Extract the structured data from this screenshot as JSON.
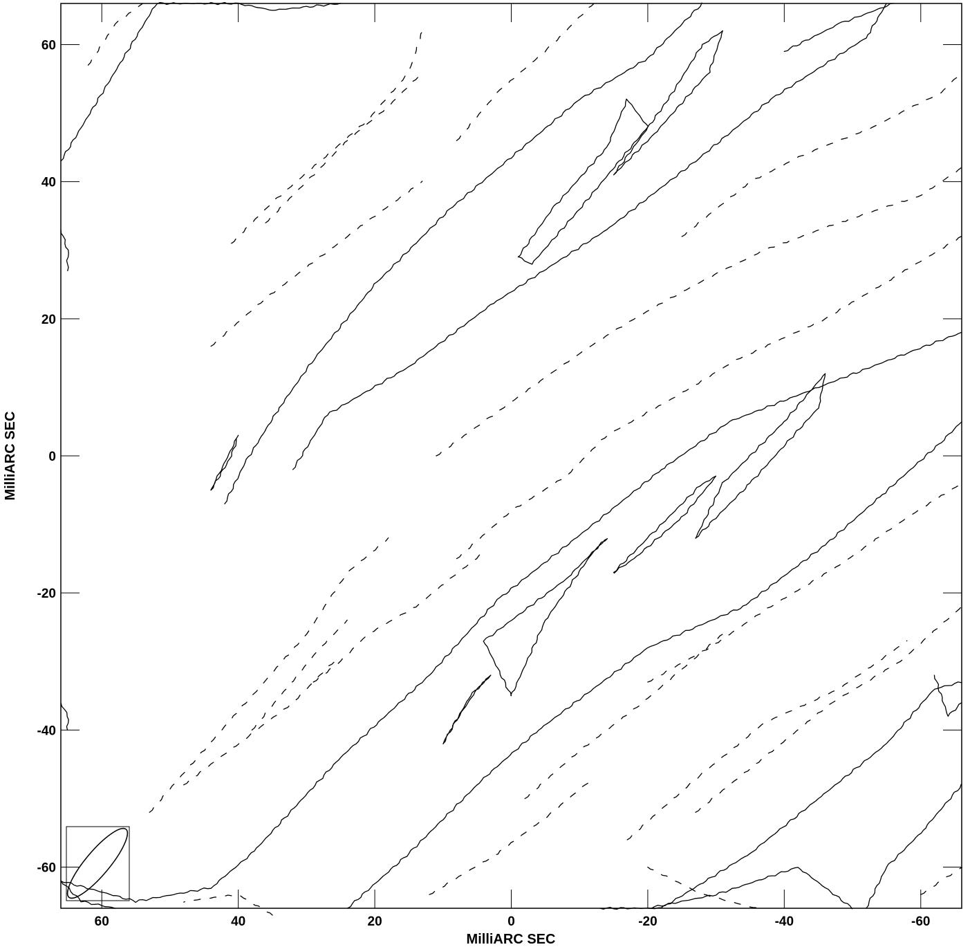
{
  "chart_data": {
    "type": "contour",
    "title": "",
    "xlabel": "MilliARC SEC",
    "ylabel": "MilliARC SEC",
    "xlim": [
      66,
      -66
    ],
    "ylim": [
      -66,
      66
    ],
    "x_ticks": [
      60,
      40,
      20,
      0,
      -20,
      -40,
      -60
    ],
    "y_ticks": [
      60,
      40,
      20,
      0,
      -20,
      -40,
      -60
    ],
    "x_tick_labels": [
      "60",
      "40",
      "20",
      "0",
      "-20",
      "-40",
      "-60"
    ],
    "y_tick_labels": [
      "60",
      "40",
      "20",
      "0",
      "-20",
      "-40",
      "-60"
    ],
    "grid": false,
    "beam": {
      "corner": "bottom-left",
      "major_axis_mas": 13,
      "minor_axis_mas": 3.5,
      "position_angle_deg": 40
    },
    "positive_contours": [
      [
        [
          66,
          -62
        ],
        [
          55,
          -65
        ],
        [
          44,
          -63
        ],
        [
          38,
          -58
        ],
        [
          25,
          -44
        ],
        [
          12,
          -32
        ],
        [
          2,
          -21
        ],
        [
          -12,
          -10
        ],
        [
          -22,
          -2
        ],
        [
          -32,
          5
        ],
        [
          -45,
          10
        ],
        [
          -58,
          15
        ],
        [
          -66,
          18
        ]
      ],
      [
        [
          24,
          -66
        ],
        [
          15,
          -58
        ],
        [
          4,
          -47
        ],
        [
          -4,
          -40
        ],
        [
          -20,
          -28
        ],
        [
          -34,
          -22
        ],
        [
          -46,
          -13
        ],
        [
          -54,
          -6
        ],
        [
          -63,
          2
        ],
        [
          -66,
          5
        ]
      ],
      [
        [
          -13,
          -66
        ],
        [
          -22,
          -66
        ],
        [
          -35,
          -58
        ],
        [
          -45,
          -50
        ],
        [
          -55,
          -42
        ],
        [
          -62,
          -34
        ],
        [
          -66,
          -33
        ]
      ],
      [
        [
          -20,
          -66
        ],
        [
          -30,
          -64
        ],
        [
          -42,
          -60
        ],
        [
          -50,
          -66
        ]
      ],
      [
        [
          -52,
          -66
        ],
        [
          -55,
          -60
        ],
        [
          -60,
          -55
        ],
        [
          -66,
          -48
        ]
      ],
      [
        [
          42,
          -7
        ],
        [
          39,
          -1
        ],
        [
          34,
          7
        ],
        [
          29,
          14
        ],
        [
          20,
          25
        ],
        [
          9,
          36
        ],
        [
          -10,
          52
        ],
        [
          -20,
          58
        ],
        [
          -28,
          66
        ]
      ],
      [
        [
          32,
          -2
        ],
        [
          27,
          6
        ],
        [
          15,
          13
        ],
        [
          3,
          22
        ],
        [
          -14,
          33
        ],
        [
          -27,
          43
        ],
        [
          -38,
          52
        ],
        [
          -52,
          61
        ],
        [
          -55,
          66
        ]
      ],
      [
        [
          -40,
          59
        ],
        [
          -48,
          63
        ],
        [
          -56,
          66
        ]
      ],
      [
        [
          66,
          43
        ],
        [
          52,
          66
        ],
        [
          40,
          66
        ],
        [
          35,
          65
        ],
        [
          25,
          66
        ]
      ],
      [
        [
          -1,
          29
        ],
        [
          -6,
          36
        ],
        [
          -14,
          45
        ],
        [
          -17,
          52
        ],
        [
          -20,
          48
        ],
        [
          -10,
          36
        ],
        [
          -3,
          28
        ],
        [
          -1,
          29
        ]
      ],
      [
        [
          -15,
          41
        ],
        [
          -23,
          52
        ],
        [
          -28,
          60
        ],
        [
          -31,
          62
        ],
        [
          -29,
          56
        ],
        [
          -21,
          47
        ],
        [
          -15,
          41
        ]
      ],
      [
        [
          -27,
          -12
        ],
        [
          -35,
          -4
        ],
        [
          -45,
          7
        ],
        [
          -46,
          12
        ],
        [
          -40,
          5
        ],
        [
          -31,
          -4
        ],
        [
          -27,
          -12
        ]
      ],
      [
        [
          -15,
          -17
        ],
        [
          -20,
          -12
        ],
        [
          -28,
          -4
        ],
        [
          -30,
          -3
        ],
        [
          -25,
          -9
        ],
        [
          -18,
          -15
        ],
        [
          -15,
          -17
        ]
      ],
      [
        [
          0,
          -35
        ],
        [
          4,
          -27
        ],
        [
          -8,
          -18
        ],
        [
          -14,
          -12
        ],
        [
          -12,
          -14
        ],
        [
          -5,
          -24
        ],
        [
          0,
          -35
        ]
      ],
      [
        [
          10,
          -42
        ],
        [
          6,
          -35
        ],
        [
          3,
          -32
        ],
        [
          5,
          -34
        ],
        [
          9,
          -40
        ],
        [
          10,
          -42
        ]
      ],
      [
        [
          44,
          -5
        ],
        [
          41,
          0
        ],
        [
          40,
          3
        ],
        [
          43,
          -3
        ],
        [
          44,
          -5
        ]
      ],
      [
        [
          66,
          -62
        ],
        [
          63,
          -65
        ],
        [
          58,
          -66
        ]
      ],
      [
        [
          -62,
          -32
        ],
        [
          -64,
          -38
        ],
        [
          -66,
          -36
        ]
      ],
      [
        [
          66,
          33
        ],
        [
          65,
          30
        ],
        [
          65,
          27
        ]
      ],
      [
        [
          66,
          -36
        ],
        [
          65,
          -38
        ],
        [
          65,
          -40
        ]
      ]
    ],
    "negative_contours": [
      [
        [
          53,
          -52
        ],
        [
          46,
          -44
        ],
        [
          38,
          -35
        ],
        [
          30,
          -26
        ],
        [
          24,
          -17
        ],
        [
          18,
          -12
        ]
      ],
      [
        [
          48,
          -48
        ],
        [
          40,
          -42
        ],
        [
          32,
          -36
        ],
        [
          26,
          -30
        ]
      ],
      [
        [
          38,
          -40
        ],
        [
          33,
          -34
        ],
        [
          28,
          -28
        ],
        [
          24,
          -24
        ]
      ],
      [
        [
          29,
          -33
        ],
        [
          25,
          -30
        ],
        [
          21,
          -26
        ],
        [
          14,
          -22
        ],
        [
          9,
          -18
        ],
        [
          4,
          -14
        ]
      ],
      [
        [
          8,
          -15
        ],
        [
          0,
          -8
        ],
        [
          -8,
          -3
        ],
        [
          -14,
          3
        ],
        [
          -23,
          8
        ],
        [
          -33,
          14
        ],
        [
          -46,
          20
        ],
        [
          -56,
          26
        ],
        [
          -66,
          32
        ]
      ],
      [
        [
          11,
          0
        ],
        [
          4,
          5
        ],
        [
          -3,
          10
        ],
        [
          -10,
          15
        ],
        [
          -18,
          20
        ],
        [
          -27,
          25
        ],
        [
          -37,
          30
        ],
        [
          -48,
          34
        ],
        [
          -60,
          38
        ],
        [
          -66,
          42
        ]
      ],
      [
        [
          44,
          16
        ],
        [
          36,
          23
        ],
        [
          28,
          29
        ],
        [
          20,
          35
        ],
        [
          13,
          40
        ]
      ],
      [
        [
          41,
          31
        ],
        [
          35,
          37
        ],
        [
          28,
          43
        ],
        [
          21,
          49
        ],
        [
          15,
          56
        ],
        [
          13,
          62
        ]
      ],
      [
        [
          36,
          34
        ],
        [
          30,
          40
        ],
        [
          24,
          46
        ],
        [
          18,
          51
        ],
        [
          13,
          56
        ]
      ],
      [
        [
          8,
          46
        ],
        [
          2,
          53
        ],
        [
          -6,
          60
        ],
        [
          -12,
          66
        ]
      ],
      [
        [
          -25,
          32
        ],
        [
          -35,
          40
        ],
        [
          -43,
          44
        ],
        [
          -53,
          48
        ],
        [
          -63,
          53
        ],
        [
          -66,
          56
        ]
      ],
      [
        [
          -27,
          -52
        ],
        [
          -37,
          -44
        ],
        [
          -47,
          -36
        ],
        [
          -57,
          -30
        ],
        [
          -66,
          -22
        ]
      ],
      [
        [
          -17,
          -56
        ],
        [
          -26,
          -48
        ],
        [
          -37,
          -39
        ],
        [
          -48,
          -34
        ],
        [
          -58,
          -27
        ]
      ],
      [
        [
          -20,
          -33
        ],
        [
          -29,
          -28
        ],
        [
          -38,
          -22
        ],
        [
          -48,
          -16
        ],
        [
          -58,
          -9
        ],
        [
          -66,
          -4
        ]
      ],
      [
        [
          -20,
          -60
        ],
        [
          -28,
          -64
        ],
        [
          -36,
          -66
        ]
      ],
      [
        [
          -2,
          -50
        ],
        [
          -10,
          -43
        ],
        [
          -18,
          -37
        ],
        [
          -24,
          -32
        ],
        [
          -31,
          -26
        ]
      ],
      [
        [
          12,
          -64
        ],
        [
          2,
          -58
        ],
        [
          -6,
          -52
        ],
        [
          -12,
          -47
        ]
      ],
      [
        [
          62,
          57
        ],
        [
          58,
          63
        ],
        [
          54,
          66
        ]
      ],
      [
        [
          -60,
          -64
        ],
        [
          -63,
          -62
        ],
        [
          -66,
          -60
        ]
      ],
      [
        [
          35,
          -67
        ],
        [
          40,
          -64
        ],
        [
          48,
          -65
        ]
      ]
    ]
  }
}
